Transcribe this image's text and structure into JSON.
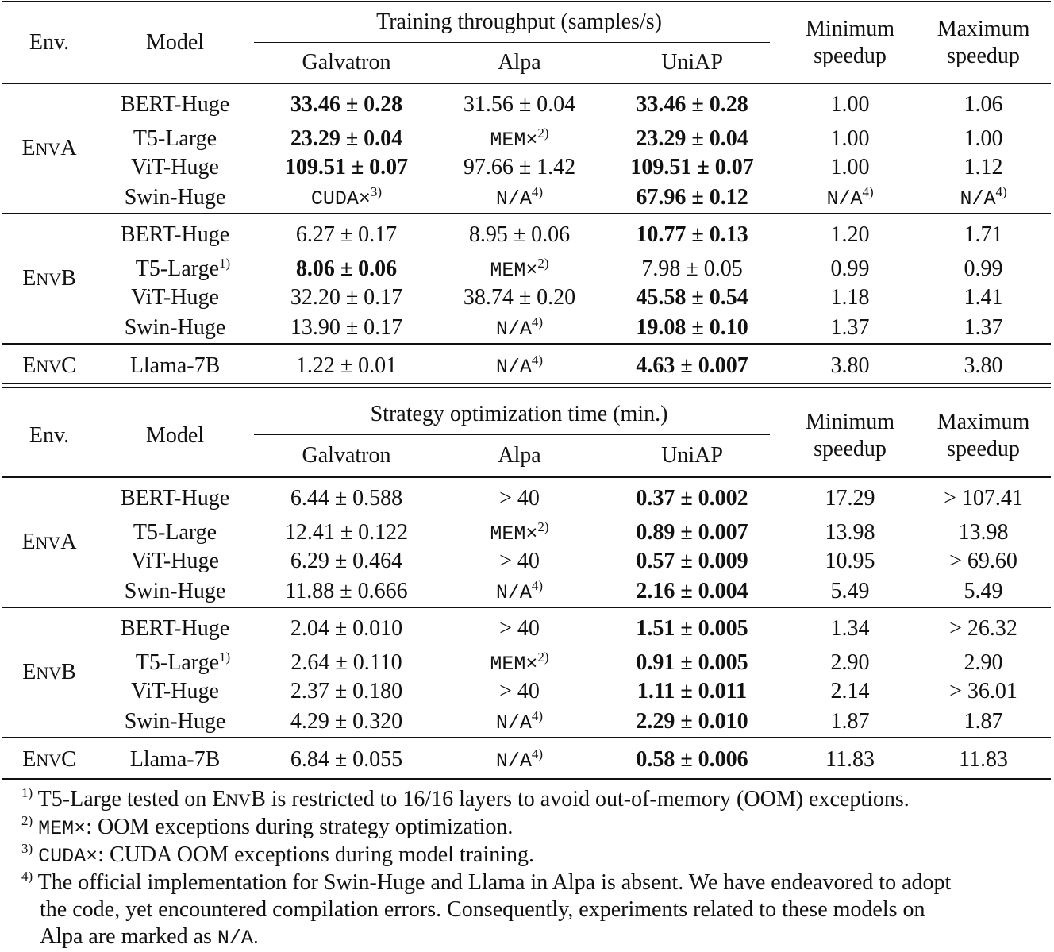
{
  "headers": {
    "env": "Env.",
    "model": "Model",
    "galvatron": "Galvatron",
    "alpa": "Alpa",
    "uniap": "UniAP",
    "min_speedup_1": "Minimum",
    "min_speedup_2": "speedup",
    "max_speedup_1": "Maximum",
    "max_speedup_2": "speedup"
  },
  "top": {
    "group_header": "Training throughput (samples/s)",
    "groups": [
      {
        "env": "A",
        "rows": [
          {
            "model": "BERT-Huge",
            "model_sup": "",
            "galvatron": "33.46 ± 0.28",
            "galvatron_bold": true,
            "galvatron_sup": "",
            "galvatron_mono": false,
            "alpa": "31.56 ± 0.04",
            "alpa_bold": false,
            "alpa_sup": "",
            "alpa_mono": false,
            "uniap": "33.46 ± 0.28",
            "uniap_bold": true,
            "min": "1.00",
            "min_sup": "",
            "min_mono": false,
            "max": "1.06",
            "max_sup": "",
            "max_mono": false
          },
          {
            "model": "T5-Large",
            "model_sup": "",
            "galvatron": "23.29 ± 0.04",
            "galvatron_bold": true,
            "galvatron_sup": "",
            "galvatron_mono": false,
            "alpa": "MEM×",
            "alpa_bold": false,
            "alpa_sup": "2)",
            "alpa_mono": true,
            "uniap": "23.29 ± 0.04",
            "uniap_bold": true,
            "min": "1.00",
            "min_sup": "",
            "min_mono": false,
            "max": "1.00",
            "max_sup": "",
            "max_mono": false
          },
          {
            "model": "ViT-Huge",
            "model_sup": "",
            "galvatron": "109.51 ± 0.07",
            "galvatron_bold": true,
            "galvatron_sup": "",
            "galvatron_mono": false,
            "alpa": "97.66 ± 1.42",
            "alpa_bold": false,
            "alpa_sup": "",
            "alpa_mono": false,
            "uniap": "109.51 ± 0.07",
            "uniap_bold": true,
            "min": "1.00",
            "min_sup": "",
            "min_mono": false,
            "max": "1.12",
            "max_sup": "",
            "max_mono": false
          },
          {
            "model": "Swin-Huge",
            "model_sup": "",
            "galvatron": "CUDA×",
            "galvatron_bold": false,
            "galvatron_sup": "3)",
            "galvatron_mono": true,
            "alpa": "N/A",
            "alpa_bold": false,
            "alpa_sup": "4)",
            "alpa_mono": true,
            "uniap": "67.96 ± 0.12",
            "uniap_bold": true,
            "min": "N/A",
            "min_sup": "4)",
            "min_mono": true,
            "max": "N/A",
            "max_sup": "4)",
            "max_mono": true
          }
        ]
      },
      {
        "env": "B",
        "rows": [
          {
            "model": "BERT-Huge",
            "model_sup": "",
            "galvatron": "6.27 ± 0.17",
            "galvatron_bold": false,
            "galvatron_sup": "",
            "galvatron_mono": false,
            "alpa": "8.95 ± 0.06",
            "alpa_bold": false,
            "alpa_sup": "",
            "alpa_mono": false,
            "uniap": "10.77 ± 0.13",
            "uniap_bold": true,
            "min": "1.20",
            "min_sup": "",
            "min_mono": false,
            "max": "1.71",
            "max_sup": "",
            "max_mono": false
          },
          {
            "model": "T5-Large",
            "model_sup": "1)",
            "galvatron": "8.06 ± 0.06",
            "galvatron_bold": true,
            "galvatron_sup": "",
            "galvatron_mono": false,
            "alpa": "MEM×",
            "alpa_bold": false,
            "alpa_sup": "2)",
            "alpa_mono": true,
            "uniap": "7.98 ± 0.05",
            "uniap_bold": false,
            "min": "0.99",
            "min_sup": "",
            "min_mono": false,
            "max": "0.99",
            "max_sup": "",
            "max_mono": false
          },
          {
            "model": "ViT-Huge",
            "model_sup": "",
            "galvatron": "32.20 ± 0.17",
            "galvatron_bold": false,
            "galvatron_sup": "",
            "galvatron_mono": false,
            "alpa": "38.74 ± 0.20",
            "alpa_bold": false,
            "alpa_sup": "",
            "alpa_mono": false,
            "uniap": "45.58 ± 0.54",
            "uniap_bold": true,
            "min": "1.18",
            "min_sup": "",
            "min_mono": false,
            "max": "1.41",
            "max_sup": "",
            "max_mono": false
          },
          {
            "model": "Swin-Huge",
            "model_sup": "",
            "galvatron": "13.90 ± 0.17",
            "galvatron_bold": false,
            "galvatron_sup": "",
            "galvatron_mono": false,
            "alpa": "N/A",
            "alpa_bold": false,
            "alpa_sup": "4)",
            "alpa_mono": true,
            "uniap": "19.08 ± 0.10",
            "uniap_bold": true,
            "min": "1.37",
            "min_sup": "",
            "min_mono": false,
            "max": "1.37",
            "max_sup": "",
            "max_mono": false
          }
        ]
      },
      {
        "env": "C",
        "rows": [
          {
            "model": "Llama-7B",
            "model_sup": "",
            "galvatron": "1.22 ± 0.01",
            "galvatron_bold": false,
            "galvatron_sup": "",
            "galvatron_mono": false,
            "alpa": "N/A",
            "alpa_bold": false,
            "alpa_sup": "4)",
            "alpa_mono": true,
            "uniap": "4.63 ± 0.007",
            "uniap_bold": true,
            "min": "3.80",
            "min_sup": "",
            "min_mono": false,
            "max": "3.80",
            "max_sup": "",
            "max_mono": false
          }
        ]
      }
    ]
  },
  "bottom": {
    "group_header": "Strategy optimization time (min.)",
    "groups": [
      {
        "env": "A",
        "rows": [
          {
            "model": "BERT-Huge",
            "model_sup": "",
            "galvatron": "6.44 ± 0.588",
            "galvatron_bold": false,
            "galvatron_sup": "",
            "galvatron_mono": false,
            "alpa": "> 40",
            "alpa_bold": false,
            "alpa_sup": "",
            "alpa_mono": false,
            "uniap": "0.37 ± 0.002",
            "uniap_bold": true,
            "min": "17.29",
            "min_sup": "",
            "min_mono": false,
            "max": "> 107.41",
            "max_sup": "",
            "max_mono": false
          },
          {
            "model": "T5-Large",
            "model_sup": "",
            "galvatron": "12.41 ± 0.122",
            "galvatron_bold": false,
            "galvatron_sup": "",
            "galvatron_mono": false,
            "alpa": "MEM×",
            "alpa_bold": false,
            "alpa_sup": "2)",
            "alpa_mono": true,
            "uniap": "0.89 ± 0.007",
            "uniap_bold": true,
            "min": "13.98",
            "min_sup": "",
            "min_mono": false,
            "max": "13.98",
            "max_sup": "",
            "max_mono": false
          },
          {
            "model": "ViT-Huge",
            "model_sup": "",
            "galvatron": "6.29 ± 0.464",
            "galvatron_bold": false,
            "galvatron_sup": "",
            "galvatron_mono": false,
            "alpa": "> 40",
            "alpa_bold": false,
            "alpa_sup": "",
            "alpa_mono": false,
            "uniap": "0.57 ± 0.009",
            "uniap_bold": true,
            "min": "10.95",
            "min_sup": "",
            "min_mono": false,
            "max": "> 69.60",
            "max_sup": "",
            "max_mono": false
          },
          {
            "model": "Swin-Huge",
            "model_sup": "",
            "galvatron": "11.88 ± 0.666",
            "galvatron_bold": false,
            "galvatron_sup": "",
            "galvatron_mono": false,
            "alpa": "N/A",
            "alpa_bold": false,
            "alpa_sup": "4)",
            "alpa_mono": true,
            "uniap": "2.16 ± 0.004",
            "uniap_bold": true,
            "min": "5.49",
            "min_sup": "",
            "min_mono": false,
            "max": "5.49",
            "max_sup": "",
            "max_mono": false
          }
        ]
      },
      {
        "env": "B",
        "rows": [
          {
            "model": "BERT-Huge",
            "model_sup": "",
            "galvatron": "2.04 ± 0.010",
            "galvatron_bold": false,
            "galvatron_sup": "",
            "galvatron_mono": false,
            "alpa": "> 40",
            "alpa_bold": false,
            "alpa_sup": "",
            "alpa_mono": false,
            "uniap": "1.51 ± 0.005",
            "uniap_bold": true,
            "min": "1.34",
            "min_sup": "",
            "min_mono": false,
            "max": "> 26.32",
            "max_sup": "",
            "max_mono": false
          },
          {
            "model": "T5-Large",
            "model_sup": "1)",
            "galvatron": "2.64 ± 0.110",
            "galvatron_bold": false,
            "galvatron_sup": "",
            "galvatron_mono": false,
            "alpa": "MEM×",
            "alpa_bold": false,
            "alpa_sup": "2)",
            "alpa_mono": true,
            "uniap": "0.91 ± 0.005",
            "uniap_bold": true,
            "min": "2.90",
            "min_sup": "",
            "min_mono": false,
            "max": "2.90",
            "max_sup": "",
            "max_mono": false
          },
          {
            "model": "ViT-Huge",
            "model_sup": "",
            "galvatron": "2.37 ± 0.180",
            "galvatron_bold": false,
            "galvatron_sup": "",
            "galvatron_mono": false,
            "alpa": "> 40",
            "alpa_bold": false,
            "alpa_sup": "",
            "alpa_mono": false,
            "uniap": "1.11 ± 0.011",
            "uniap_bold": true,
            "min": "2.14",
            "min_sup": "",
            "min_mono": false,
            "max": "> 36.01",
            "max_sup": "",
            "max_mono": false
          },
          {
            "model": "Swin-Huge",
            "model_sup": "",
            "galvatron": "4.29 ± 0.320",
            "galvatron_bold": false,
            "galvatron_sup": "",
            "galvatron_mono": false,
            "alpa": "N/A",
            "alpa_bold": false,
            "alpa_sup": "4)",
            "alpa_mono": true,
            "uniap": "2.29 ± 0.010",
            "uniap_bold": true,
            "min": "1.87",
            "min_sup": "",
            "min_mono": false,
            "max": "1.87",
            "max_sup": "",
            "max_mono": false
          }
        ]
      },
      {
        "env": "C",
        "rows": [
          {
            "model": "Llama-7B",
            "model_sup": "",
            "galvatron": "6.84 ± 0.055",
            "galvatron_bold": false,
            "galvatron_sup": "",
            "galvatron_mono": false,
            "alpa": "N/A",
            "alpa_bold": false,
            "alpa_sup": "4)",
            "alpa_mono": true,
            "uniap": "0.58 ± 0.006",
            "uniap_bold": true,
            "min": "11.83",
            "min_sup": "",
            "min_mono": false,
            "max": "11.83",
            "max_sup": "",
            "max_mono": false
          }
        ]
      }
    ]
  },
  "footnotes": {
    "fn1": {
      "mark": "1)",
      "pre": "T5-Large tested on E",
      "sc": "NV",
      "post": "B is restricted to 16/16 layers to avoid out-of-memory (OOM) exceptions."
    },
    "fn2": {
      "mark": "2)",
      "code": "MEM×",
      "text": ": OOM exceptions during strategy optimization."
    },
    "fn3": {
      "mark": "3)",
      "code": "CUDA×",
      "text": ": CUDA OOM exceptions during model training."
    },
    "fn4": {
      "mark": "4)",
      "line1": "The official implementation for Swin-Huge and Llama in Alpa is absent. We have endeavored to adopt",
      "line2": "the code, yet encountered compilation errors. Consequently, experiments related to these models on",
      "line3_pre": "Alpa are marked as ",
      "line3_code": "N/A",
      "line3_post": "."
    }
  }
}
